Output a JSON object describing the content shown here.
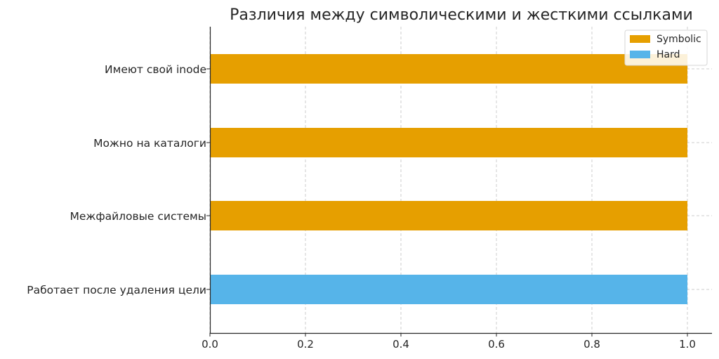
{
  "chart_data": {
    "type": "bar",
    "orientation": "horizontal",
    "title": "Различия между символическими и жесткими ссылками",
    "xlabel": "",
    "ylabel": "",
    "xlim": [
      0,
      1.0
    ],
    "x_ticks": [
      "0.0",
      "0.2",
      "0.4",
      "0.6",
      "0.8",
      "1.0"
    ],
    "grid": true,
    "legend_position": "top-right",
    "categories": [
      "Имеют свой inode",
      "Можно на каталоги",
      "Межфайловые системы",
      "Работает после удаления цели"
    ],
    "series": [
      {
        "name": "Symbolic",
        "color": "#E69F00",
        "values": [
          1,
          1,
          1,
          0
        ]
      },
      {
        "name": "Hard",
        "color": "#56B4E9",
        "values": [
          0,
          0,
          0,
          1
        ]
      }
    ]
  }
}
